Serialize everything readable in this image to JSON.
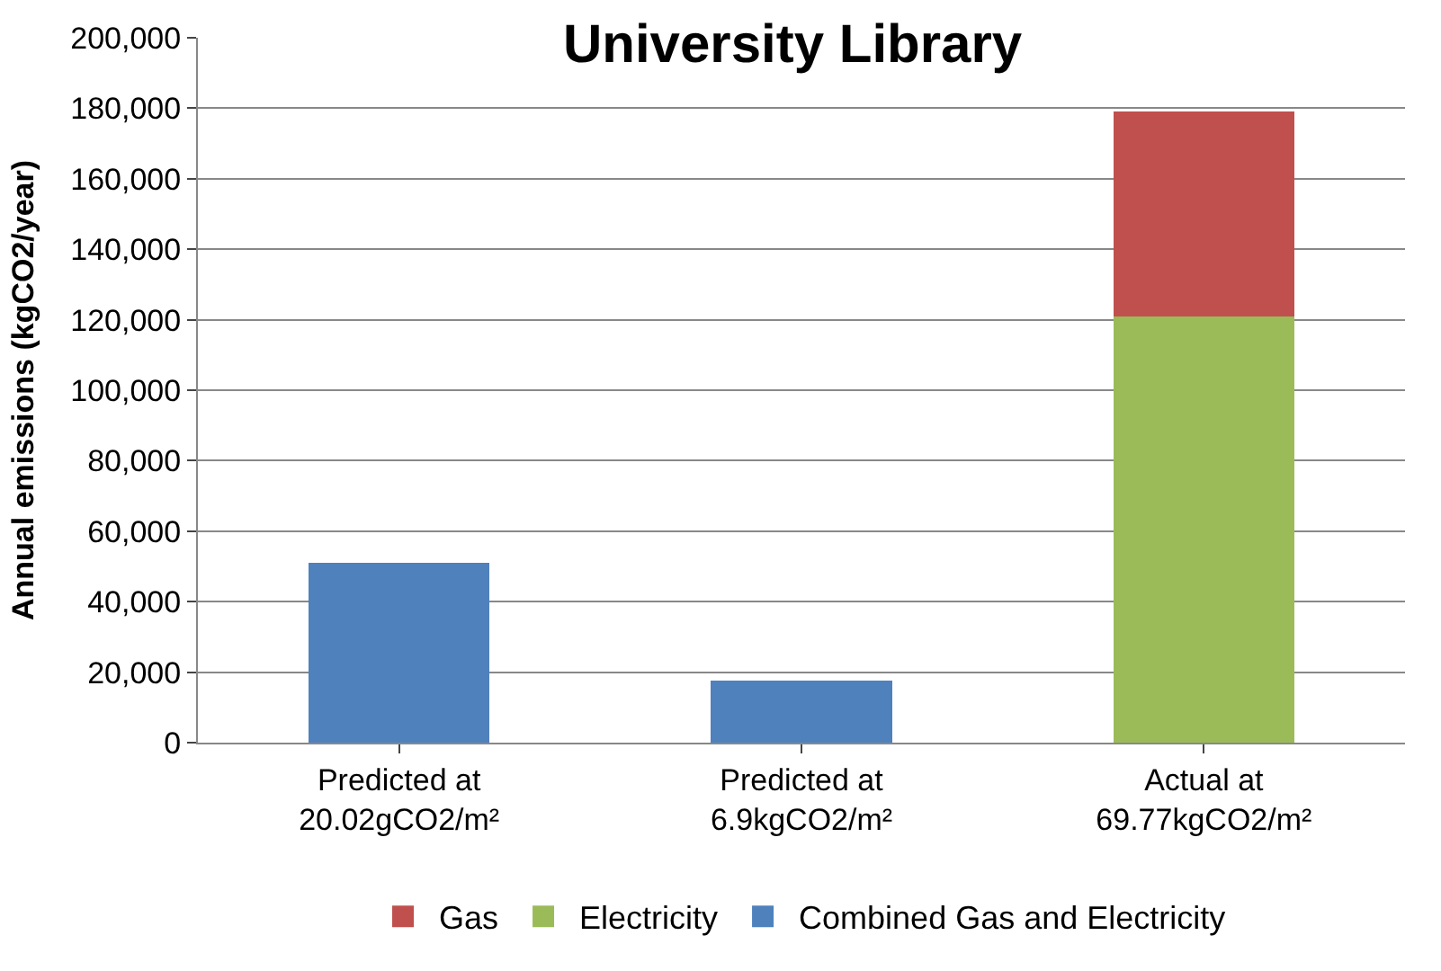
{
  "chart_data": {
    "type": "bar",
    "title": "University Library",
    "ylabel": "Annual emissions (kgCO2/year)",
    "categories": [
      "Predicted at\n20.02gCO2/m²",
      "Predicted at\n6.9kgCO2/m²",
      "Actual at\n69.77kgCO2/m²"
    ],
    "stacked": true,
    "series": [
      {
        "name": "Combined Gas and Electricity",
        "color": "#4f81bd",
        "values": [
          51000,
          17500,
          null
        ]
      },
      {
        "name": "Electricity",
        "color": "#9bbb59",
        "values": [
          null,
          null,
          121000
        ]
      },
      {
        "name": "Gas",
        "color": "#c0504d",
        "values": [
          null,
          null,
          58000
        ]
      }
    ],
    "ylim": [
      0,
      200000
    ],
    "yticks": [
      {
        "value": 0,
        "label": "0"
      },
      {
        "value": 20000,
        "label": "20,000"
      },
      {
        "value": 40000,
        "label": "40,000"
      },
      {
        "value": 60000,
        "label": "60,000"
      },
      {
        "value": 80000,
        "label": "80,000"
      },
      {
        "value": 100000,
        "label": "100,000"
      },
      {
        "value": 120000,
        "label": "120,000"
      },
      {
        "value": 140000,
        "label": "140,000"
      },
      {
        "value": 160000,
        "label": "160,000"
      },
      {
        "value": 180000,
        "label": "180,000"
      },
      {
        "value": 200000,
        "label": "200,000"
      }
    ],
    "grid": "y",
    "legend": "bottom"
  }
}
